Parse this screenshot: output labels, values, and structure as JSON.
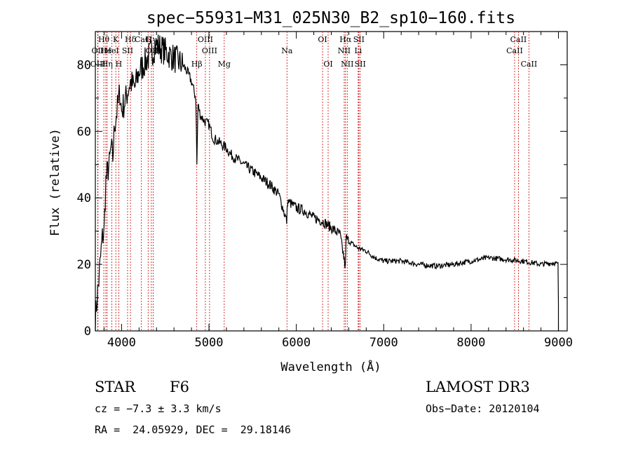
{
  "chart_data": {
    "type": "line",
    "title": "spec−55931−M31_025N30_B2_sp10−160.fits",
    "xlabel": "Wavelength (Å)",
    "ylabel": "Flux (relative)",
    "xlim": [
      3700,
      9100
    ],
    "ylim": [
      0,
      90
    ],
    "xticks": [
      4000,
      5000,
      6000,
      7000,
      8000,
      9000
    ],
    "yticks": [
      0,
      20,
      40,
      60,
      80
    ],
    "series": [
      {
        "name": "spectrum",
        "x": [
          3700,
          3720,
          3740,
          3760,
          3780,
          3800,
          3820,
          3840,
          3860,
          3880,
          3900,
          3920,
          3940,
          3960,
          3980,
          4000,
          4050,
          4100,
          4150,
          4200,
          4250,
          4300,
          4350,
          4400,
          4450,
          4500,
          4550,
          4600,
          4650,
          4700,
          4750,
          4800,
          4850,
          4862,
          4875,
          4900,
          4950,
          5000,
          5050,
          5100,
          5150,
          5200,
          5250,
          5300,
          5400,
          5500,
          5600,
          5700,
          5800,
          5890,
          5900,
          5950,
          6000,
          6100,
          6200,
          6300,
          6400,
          6500,
          6562,
          6570,
          6600,
          6700,
          6800,
          6900,
          7000,
          7200,
          7400,
          7600,
          7800,
          8000,
          8200,
          8400,
          8600,
          8800,
          8950,
          8995,
          9000
        ],
        "y": [
          3,
          10,
          15,
          22,
          28,
          30,
          45,
          48,
          50,
          55,
          52,
          62,
          65,
          68,
          72,
          66,
          70,
          75,
          73,
          78,
          80,
          82,
          84,
          86,
          85,
          84,
          83,
          82,
          81,
          80,
          78,
          75,
          70,
          50,
          68,
          65,
          63,
          62,
          58,
          57,
          56,
          55,
          53,
          52,
          50,
          48,
          46,
          44,
          41,
          33,
          39,
          38,
          37,
          36,
          34,
          33,
          31,
          29,
          19,
          28,
          27,
          25,
          24,
          22,
          21,
          21,
          20,
          19.5,
          20,
          21,
          22,
          21.5,
          21,
          20,
          20.5,
          20,
          8
        ]
      }
    ],
    "spectral_lines": [
      {
        "label": "Hθ",
        "x": 3797,
        "row": 1
      },
      {
        "label": "OII",
        "x": 3727,
        "row": 2
      },
      {
        "label": "OIII",
        "x": 3730,
        "row": 3
      },
      {
        "label": "He",
        "x": 3820,
        "row": 2
      },
      {
        "label": "Hη",
        "x": 3835,
        "row": 3
      },
      {
        "label": "K",
        "x": 3934,
        "row": 1
      },
      {
        "label": "HeI",
        "x": 3889,
        "row": 2
      },
      {
        "label": "H",
        "x": 3968,
        "row": 3
      },
      {
        "label": "SII",
        "x": 4069,
        "row": 2
      },
      {
        "label": "Hδ",
        "x": 4102,
        "row": 1
      },
      {
        "label": "CaI",
        "x": 4227,
        "row": 1
      },
      {
        "label": "G",
        "x": 4304,
        "row": 1
      },
      {
        "label": "Hγ",
        "x": 4341,
        "row": 1
      },
      {
        "label": "OIII",
        "x": 4363,
        "row": 2
      },
      {
        "label": "Hβ",
        "x": 4861,
        "row": 3
      },
      {
        "label": "OIII",
        "x": 4959,
        "row": 1
      },
      {
        "label": "OIII",
        "x": 5007,
        "row": 2
      },
      {
        "label": "Mg",
        "x": 5175,
        "row": 3
      },
      {
        "label": "Na",
        "x": 5893,
        "row": 2
      },
      {
        "label": "OI",
        "x": 6300,
        "row": 1
      },
      {
        "label": "OI",
        "x": 6364,
        "row": 3
      },
      {
        "label": "Hα",
        "x": 6563,
        "row": 1
      },
      {
        "label": "NII",
        "x": 6548,
        "row": 2
      },
      {
        "label": "NII",
        "x": 6583,
        "row": 3
      },
      {
        "label": "SII",
        "x": 6716,
        "row": 1
      },
      {
        "label": "Li",
        "x": 6708,
        "row": 2
      },
      {
        "label": "SII",
        "x": 6731,
        "row": 3
      },
      {
        "label": "CaII",
        "x": 8542,
        "row": 1
      },
      {
        "label": "CaII",
        "x": 8498,
        "row": 2
      },
      {
        "label": "CaII",
        "x": 8662,
        "row": 3
      }
    ]
  },
  "info": {
    "object_class": "STAR",
    "subclass": "F6",
    "survey": "LAMOST DR3",
    "velocity": "cz = −7.3 ± 3.3 km/s",
    "obs_date": "Obs−Date: 20120104",
    "coords": "RA =  24.05929, DEC =  29.18146"
  },
  "colors": {
    "spectrum": "#000000",
    "line_marker": "#cc0000",
    "axis": "#000000"
  }
}
